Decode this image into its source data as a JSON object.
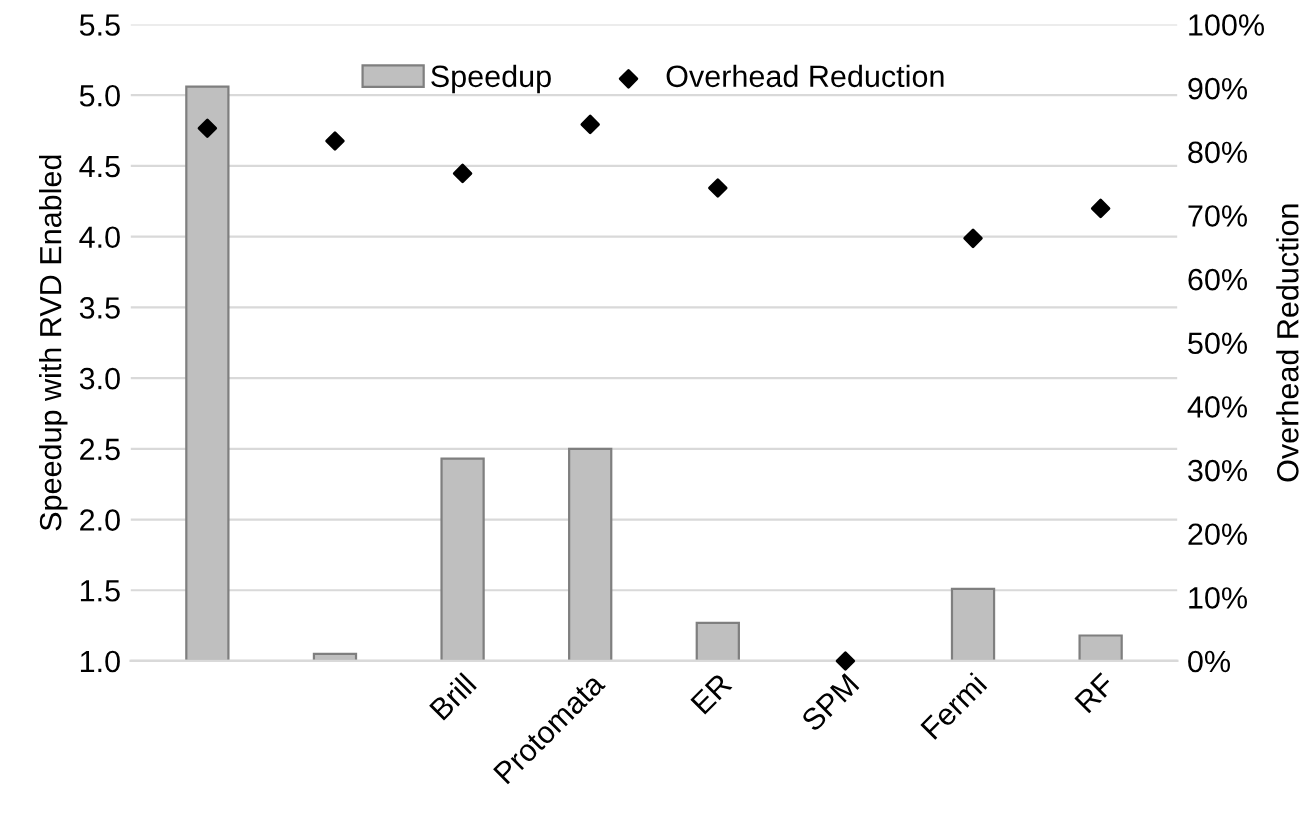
{
  "chart_data": {
    "type": "bar",
    "categories": [
      null,
      null,
      "Brill",
      "Protomata",
      "ER",
      "SPM",
      "Fermi",
      "RF"
    ],
    "ylabel": "Speedup with RVD Enabled",
    "y2label": "Overhead Reduction",
    "series": [
      {
        "name": "Speedup",
        "color": "#bfbfbf",
        "values": [
          5.06,
          1.05,
          2.43,
          2.5,
          1.27,
          null,
          1.51,
          1.18
        ]
      },
      {
        "name": "Overhead Reduction",
        "type": "scatter",
        "axis": "y2",
        "color": "#000000",
        "marker": "diamond",
        "values": [
          83.7,
          81.7,
          76.6,
          84.3,
          74.3,
          0,
          66.4,
          71.1
        ]
      }
    ],
    "ylim": [
      1.0,
      5.5
    ],
    "yticks": [
      {
        "value": 1.0,
        "label": "1.0"
      },
      {
        "value": 1.5,
        "label": "1.5"
      },
      {
        "value": 2.0,
        "label": "2.0"
      },
      {
        "value": 2.5,
        "label": "2.5"
      },
      {
        "value": 3.0,
        "label": "3.0"
      },
      {
        "value": 3.5,
        "label": "3.5"
      },
      {
        "value": 4.0,
        "label": "4.0"
      },
      {
        "value": 4.5,
        "label": "4.5"
      },
      {
        "value": 5.0,
        "label": "5.0"
      },
      {
        "value": 5.5,
        "label": "5.5"
      }
    ],
    "y2lim": [
      0,
      100
    ],
    "y2ticks": [
      {
        "value": 0,
        "label": "0%"
      },
      {
        "value": 10,
        "label": "10%"
      },
      {
        "value": 20,
        "label": "20%"
      },
      {
        "value": 30,
        "label": "30%"
      },
      {
        "value": 40,
        "label": "40%"
      },
      {
        "value": 50,
        "label": "50%"
      },
      {
        "value": 60,
        "label": "60%"
      },
      {
        "value": 70,
        "label": "70%"
      },
      {
        "value": 80,
        "label": "80%"
      },
      {
        "value": 90,
        "label": "90%"
      },
      {
        "value": 100,
        "label": "100%"
      }
    ],
    "grid": "y",
    "legend": "top"
  }
}
